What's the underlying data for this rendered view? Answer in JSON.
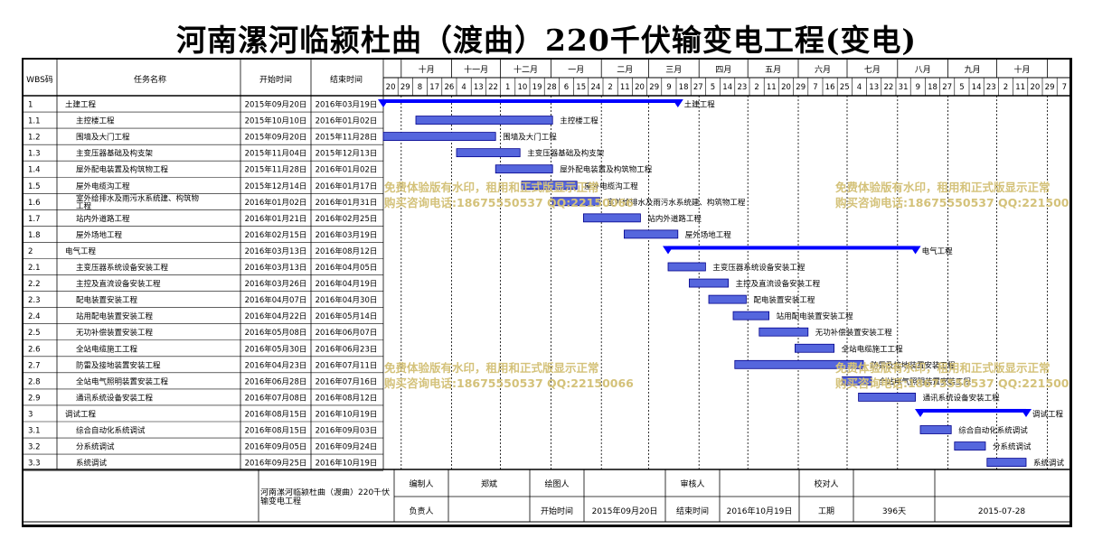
{
  "title": "河南漯河临颍杜曲（渡曲）220千伏输变电工程(变电)",
  "headers": {
    "wbs": "WBS码",
    "task": "任务名称",
    "start": "开始时间",
    "end": "结束时间"
  },
  "timeline": {
    "months": [
      "十月",
      "十一月",
      "十二月",
      "一月",
      "二月",
      "三月",
      "四月",
      "五月",
      "六月",
      "七月",
      "八月",
      "九月",
      "十月"
    ],
    "days": [
      "20",
      "29",
      "8",
      "17",
      "26",
      "4",
      "13",
      "22",
      "1",
      "10",
      "19",
      "28",
      "6",
      "15",
      "24",
      "2",
      "11",
      "20",
      "29",
      "9",
      "18",
      "27",
      "5",
      "14",
      "23",
      "2",
      "11",
      "20",
      "29",
      "7",
      "16",
      "25",
      "4",
      "13",
      "22",
      "31",
      "9",
      "18",
      "27",
      "5",
      "14",
      "23",
      "2",
      "11",
      "20",
      "29",
      "7"
    ]
  },
  "chart_data": {
    "type": "gantt",
    "title": "河南漯河临颍杜曲（渡曲）220千伏输变电工程(变电)",
    "x_range": [
      "2015-09-20",
      "2016-11-07"
    ],
    "tasks": [
      {
        "wbs": "1",
        "name": "土建工程",
        "start": "2015年09月20日",
        "end": "2016年03月19日",
        "s": "2015-09-20",
        "e": "2016-03-19",
        "level": 1,
        "summary": true
      },
      {
        "wbs": "1.1",
        "name": "主控楼工程",
        "start": "2015年10月10日",
        "end": "2016年01月02日",
        "s": "2015-10-10",
        "e": "2016-01-02",
        "level": 2,
        "summary": false
      },
      {
        "wbs": "1.2",
        "name": "围墙及大门工程",
        "start": "2015年09月20日",
        "end": "2015年11月28日",
        "s": "2015-09-20",
        "e": "2015-11-28",
        "level": 2,
        "summary": false
      },
      {
        "wbs": "1.3",
        "name": "主变压器基础及构支架",
        "start": "2015年11月04日",
        "end": "2015年12月13日",
        "s": "2015-11-04",
        "e": "2015-12-13",
        "level": 2,
        "summary": false
      },
      {
        "wbs": "1.4",
        "name": "屋外配电装置及构筑物工程",
        "start": "2015年11月28日",
        "end": "2016年01月02日",
        "s": "2015-11-28",
        "e": "2016-01-02",
        "level": 2,
        "summary": false
      },
      {
        "wbs": "1.5",
        "name": "屋外电缆沟工程",
        "start": "2015年12月14日",
        "end": "2016年01月17日",
        "s": "2015-12-14",
        "e": "2016-01-17",
        "level": 2,
        "summary": false
      },
      {
        "wbs": "1.6",
        "name": "室外给排水及雨污水系统建、构筑物工程",
        "start": "2016年01月02日",
        "end": "2016年01月31日",
        "s": "2016-01-02",
        "e": "2016-01-31",
        "level": 2,
        "summary": false
      },
      {
        "wbs": "1.7",
        "name": "站内外道路工程",
        "start": "2016年01月21日",
        "end": "2016年02月25日",
        "s": "2016-01-21",
        "e": "2016-02-25",
        "level": 2,
        "summary": false
      },
      {
        "wbs": "1.8",
        "name": "屋外场地工程",
        "start": "2016年02月15日",
        "end": "2016年03月19日",
        "s": "2016-02-15",
        "e": "2016-03-19",
        "level": 2,
        "summary": false
      },
      {
        "wbs": "2",
        "name": "电气工程",
        "start": "2016年03月13日",
        "end": "2016年08月12日",
        "s": "2016-03-13",
        "e": "2016-08-12",
        "level": 1,
        "summary": true
      },
      {
        "wbs": "2.1",
        "name": "主变压器系统设备安装工程",
        "start": "2016年03月13日",
        "end": "2016年04月05日",
        "s": "2016-03-13",
        "e": "2016-04-05",
        "level": 2,
        "summary": false
      },
      {
        "wbs": "2.2",
        "name": "主控及直流设备安装工程",
        "start": "2016年03月26日",
        "end": "2016年04月19日",
        "s": "2016-03-26",
        "e": "2016-04-19",
        "level": 2,
        "summary": false
      },
      {
        "wbs": "2.3",
        "name": "配电装置安装工程",
        "start": "2016年04月07日",
        "end": "2016年04月30日",
        "s": "2016-04-07",
        "e": "2016-04-30",
        "level": 2,
        "summary": false
      },
      {
        "wbs": "2.4",
        "name": "站用配电装置安装工程",
        "start": "2016年04月22日",
        "end": "2016年05月14日",
        "s": "2016-04-22",
        "e": "2016-05-14",
        "level": 2,
        "summary": false
      },
      {
        "wbs": "2.5",
        "name": "无功补偿装置安装工程",
        "start": "2016年05月08日",
        "end": "2016年06月07日",
        "s": "2016-05-08",
        "e": "2016-06-07",
        "level": 2,
        "summary": false
      },
      {
        "wbs": "2.6",
        "name": "全站电缆施工工程",
        "start": "2016年05月30日",
        "end": "2016年06月23日",
        "s": "2016-05-30",
        "e": "2016-06-23",
        "level": 2,
        "summary": false
      },
      {
        "wbs": "2.7",
        "name": "防雷及接地装置安装工程",
        "start": "2016年04月23日",
        "end": "2016年07月11日",
        "s": "2016-04-23",
        "e": "2016-07-11",
        "level": 2,
        "summary": false
      },
      {
        "wbs": "2.8",
        "name": "全站电气照明装置安装工程",
        "start": "2016年06月28日",
        "end": "2016年07月16日",
        "s": "2016-06-28",
        "e": "2016-07-16",
        "level": 2,
        "summary": false
      },
      {
        "wbs": "2.9",
        "name": "通讯系统设备安装工程",
        "start": "2016年07月08日",
        "end": "2016年08月12日",
        "s": "2016-07-08",
        "e": "2016-08-12",
        "level": 2,
        "summary": false
      },
      {
        "wbs": "3",
        "name": "调试工程",
        "start": "2016年08月15日",
        "end": "2016年10月19日",
        "s": "2016-08-15",
        "e": "2016-10-19",
        "level": 1,
        "summary": true
      },
      {
        "wbs": "3.1",
        "name": "综合自动化系统调试",
        "start": "2016年08月15日",
        "end": "2016年09月03日",
        "s": "2016-08-15",
        "e": "2016-09-03",
        "level": 2,
        "summary": false
      },
      {
        "wbs": "3.2",
        "name": "分系统调试",
        "start": "2016年09月05日",
        "end": "2016年09月24日",
        "s": "2016-09-05",
        "e": "2016-09-24",
        "level": 2,
        "summary": false
      },
      {
        "wbs": "3.3",
        "name": "系统调试",
        "start": "2016年09月25日",
        "end": "2016年10月19日",
        "s": "2016-09-25",
        "e": "2016-10-19",
        "level": 2,
        "summary": false
      }
    ]
  },
  "watermark": {
    "line1": "免费体验版有水印，租用和正式版显示正常",
    "line2": "购买咨询电话:18675550537 QQ:22150066"
  },
  "footer": {
    "project_name": "河南漯河临颍杜曲（渡曲）220千伏输变电工程",
    "compiler_label": "编制人",
    "compiler_value": "郑斌",
    "drawer_label": "绘图人",
    "drawer_value": "",
    "reviewer_label": "审核人",
    "reviewer_value": "",
    "checker_label": "校对人",
    "checker_value": "",
    "owner_label": "负责人",
    "owner_value": "",
    "start_label": "开始时间",
    "start_value": "2015年09月20日",
    "end_label": "结束时间",
    "end_value": "2016年10月19日",
    "duration_label": "工期",
    "duration_value": "396天",
    "date_value": "2015-07-28"
  },
  "colors": {
    "bar_fill": "#5566dd",
    "bar_stroke": "#00008b",
    "summary": "#0000ff",
    "watermark": "#d4c27a",
    "line": "#000000"
  }
}
